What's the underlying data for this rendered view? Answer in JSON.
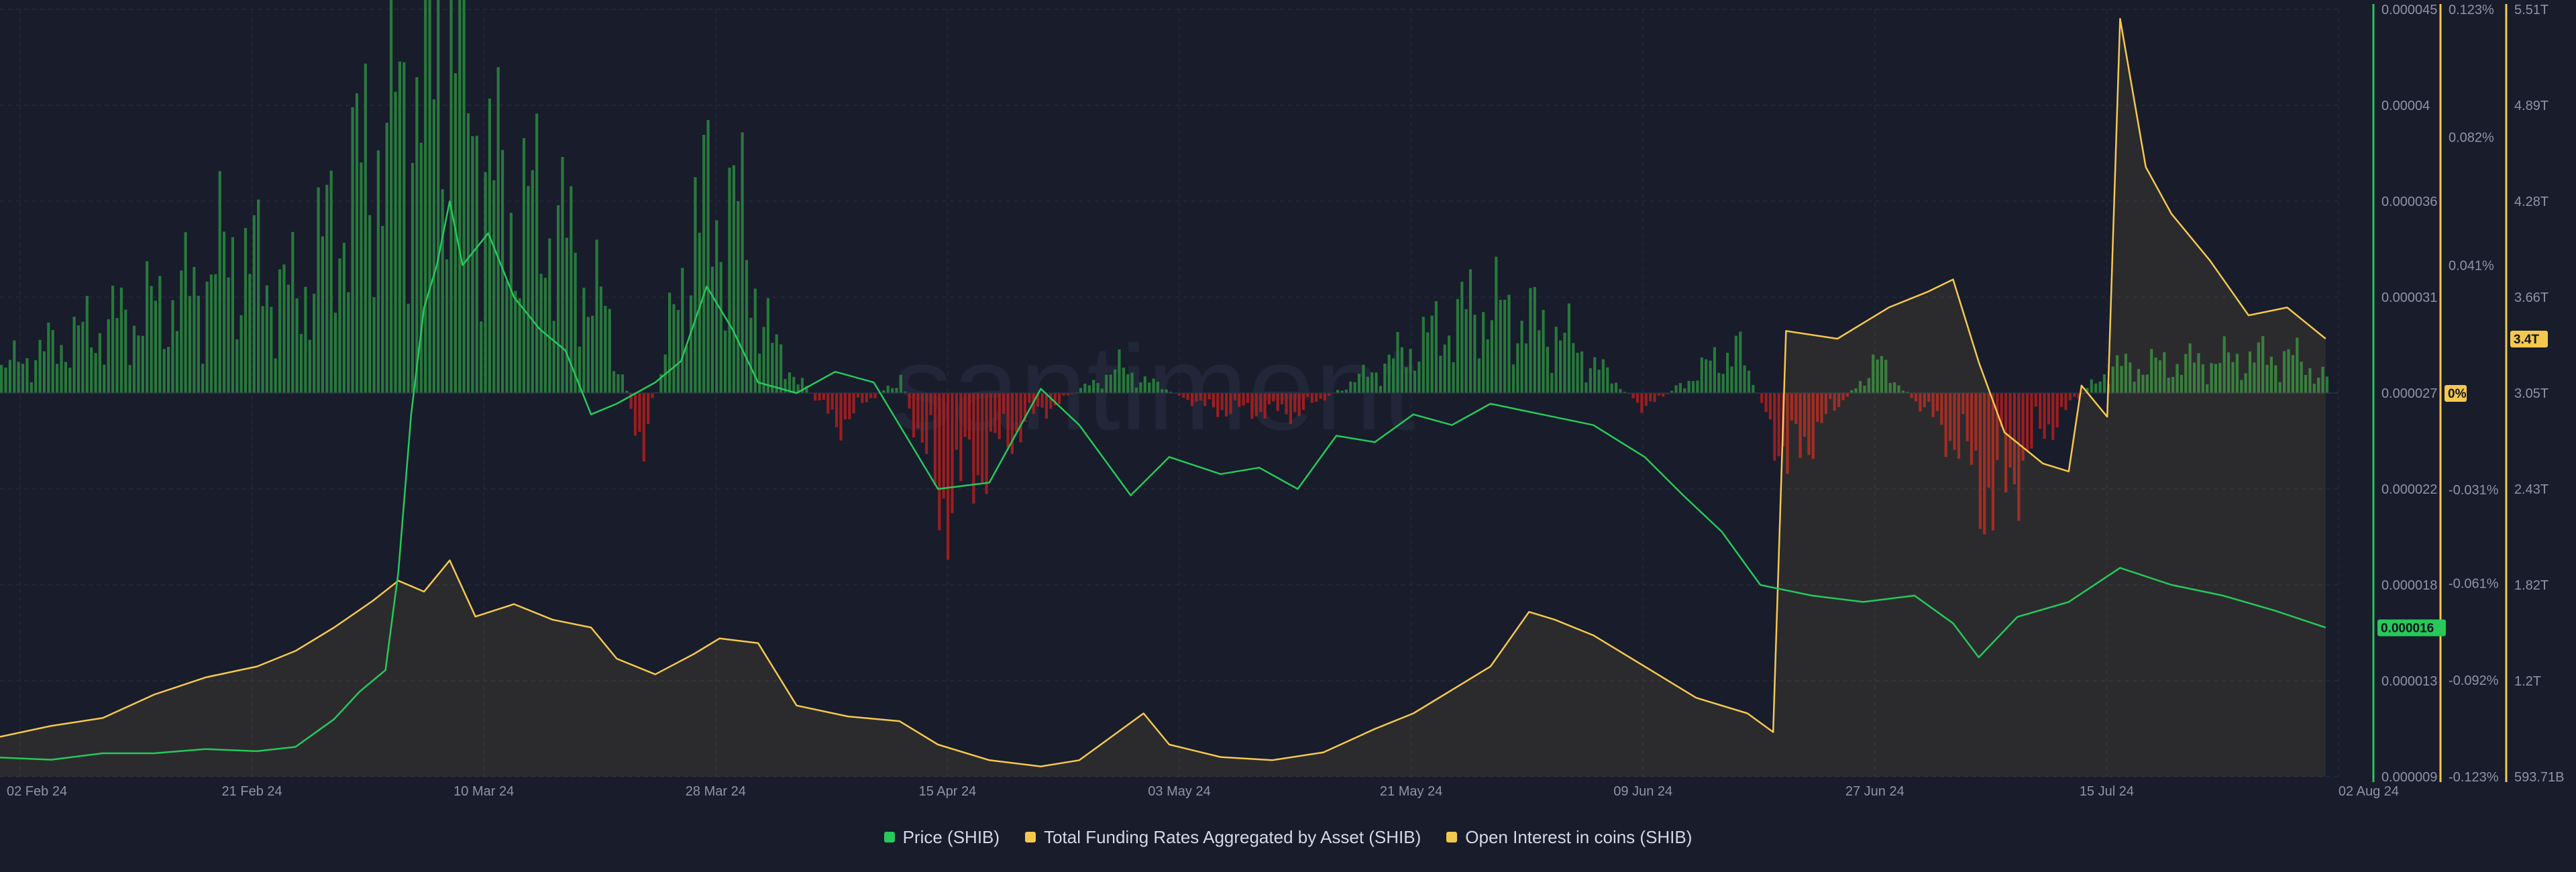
{
  "watermark": "santiment",
  "legend": [
    {
      "label": "Price (SHIB)",
      "color": "#26c95a"
    },
    {
      "label": "Total Funding Rates Aggregated by Asset (SHIB)",
      "color": "#f4c84f"
    },
    {
      "label": "Open Interest in coins (SHIB)",
      "color": "#f4c84f"
    }
  ],
  "colors": {
    "background": "#181c2b",
    "price_line": "#26c95a",
    "funding_positive": "#2a8a3f",
    "funding_negative": "#b31f1f",
    "open_interest": "#f4c84f",
    "tick_text": "#8e94a8"
  },
  "chart_data": {
    "type": "line",
    "x_axis": {
      "start": "2024-02-02",
      "end": "2024-08-02",
      "tick_labels": [
        "02 Feb 24",
        "21 Feb 24",
        "10 Mar 24",
        "28 Mar 24",
        "15 Apr 24",
        "03 May 24",
        "21 May 24",
        "09 Jun 24",
        "27 Jun 24",
        "15 Jul 24",
        "02 Aug 24"
      ]
    },
    "axes": {
      "price": {
        "series": "Price (SHIB)",
        "range": [
          9e-06,
          4.5e-05
        ],
        "tick_labels": [
          "0.000045",
          "0.00004",
          "0.000036",
          "0.000031",
          "0.000027",
          "0.000022",
          "0.000018",
          "0.000013",
          "0.000009"
        ],
        "current_badge": "0.000016",
        "color": "#26c95a"
      },
      "funding": {
        "series": "Total Funding Rates Aggregated by Asset (SHIB)",
        "unit": "%",
        "range": [
          -0.123,
          0.123
        ],
        "tick_labels": [
          "0.123%",
          "0.082%",
          "0.041%",
          "0%",
          "-0.031%",
          "-0.061%",
          "-0.092%",
          "-0.123%"
        ],
        "tick_values": [
          0.123,
          0.082,
          0.041,
          0,
          -0.031,
          -0.061,
          -0.092,
          -0.123
        ],
        "current_badge": "0%",
        "color": "#f4c84f"
      },
      "open_interest": {
        "series": "Open Interest in coins (SHIB)",
        "range_trillions": [
          0.59371,
          5.51
        ],
        "tick_labels": [
          "5.51T",
          "4.89T",
          "4.28T",
          "3.66T",
          "3.05T",
          "2.43T",
          "1.82T",
          "1.2T",
          "593.71B"
        ],
        "current_badge": "3.4T",
        "color": "#f4c84f"
      }
    },
    "series": [
      {
        "name": "Price (SHIB)",
        "axis": "price",
        "points": [
          [
            "2024-02-02",
            9.9e-06
          ],
          [
            "2024-02-06",
            9.8e-06
          ],
          [
            "2024-02-10",
            1.01e-05
          ],
          [
            "2024-02-14",
            1.01e-05
          ],
          [
            "2024-02-18",
            1.03e-05
          ],
          [
            "2024-02-22",
            1.02e-05
          ],
          [
            "2024-02-25",
            1.04e-05
          ],
          [
            "2024-02-28",
            1.17e-05
          ],
          [
            "2024-03-01",
            1.3e-05
          ],
          [
            "2024-03-03",
            1.4e-05
          ],
          [
            "2024-03-04",
            1.86e-05
          ],
          [
            "2024-03-05",
            2.6e-05
          ],
          [
            "2024-03-06",
            3.1e-05
          ],
          [
            "2024-03-07",
            3.3e-05
          ],
          [
            "2024-03-08",
            3.6e-05
          ],
          [
            "2024-03-09",
            3.3e-05
          ],
          [
            "2024-03-11",
            3.45e-05
          ],
          [
            "2024-03-13",
            3.15e-05
          ],
          [
            "2024-03-15",
            3e-05
          ],
          [
            "2024-03-17",
            2.9e-05
          ],
          [
            "2024-03-19",
            2.6e-05
          ],
          [
            "2024-03-21",
            2.65e-05
          ],
          [
            "2024-03-24",
            2.75e-05
          ],
          [
            "2024-03-26",
            2.85e-05
          ],
          [
            "2024-03-28",
            3.2e-05
          ],
          [
            "2024-03-30",
            3e-05
          ],
          [
            "2024-04-01",
            2.75e-05
          ],
          [
            "2024-04-04",
            2.7e-05
          ],
          [
            "2024-04-07",
            2.8e-05
          ],
          [
            "2024-04-10",
            2.75e-05
          ],
          [
            "2024-04-13",
            2.45e-05
          ],
          [
            "2024-04-15",
            2.25e-05
          ],
          [
            "2024-04-19",
            2.28e-05
          ],
          [
            "2024-04-23",
            2.72e-05
          ],
          [
            "2024-04-26",
            2.55e-05
          ],
          [
            "2024-04-30",
            2.22e-05
          ],
          [
            "2024-05-03",
            2.4e-05
          ],
          [
            "2024-05-07",
            2.32e-05
          ],
          [
            "2024-05-10",
            2.35e-05
          ],
          [
            "2024-05-13",
            2.25e-05
          ],
          [
            "2024-05-16",
            2.5e-05
          ],
          [
            "2024-05-19",
            2.47e-05
          ],
          [
            "2024-05-22",
            2.6e-05
          ],
          [
            "2024-05-25",
            2.55e-05
          ],
          [
            "2024-05-28",
            2.65e-05
          ],
          [
            "2024-06-01",
            2.6e-05
          ],
          [
            "2024-06-05",
            2.55e-05
          ],
          [
            "2024-06-09",
            2.4e-05
          ],
          [
            "2024-06-12",
            2.22e-05
          ],
          [
            "2024-06-15",
            2.05e-05
          ],
          [
            "2024-06-18",
            1.8e-05
          ],
          [
            "2024-06-22",
            1.75e-05
          ],
          [
            "2024-06-26",
            1.72e-05
          ],
          [
            "2024-06-30",
            1.75e-05
          ],
          [
            "2024-07-03",
            1.62e-05
          ],
          [
            "2024-07-05",
            1.46e-05
          ],
          [
            "2024-07-08",
            1.65e-05
          ],
          [
            "2024-07-12",
            1.72e-05
          ],
          [
            "2024-07-16",
            1.88e-05
          ],
          [
            "2024-07-20",
            1.8e-05
          ],
          [
            "2024-07-24",
            1.75e-05
          ],
          [
            "2024-07-28",
            1.68e-05
          ],
          [
            "2024-08-01",
            1.6e-05
          ]
        ]
      },
      {
        "name": "Open Interest in coins (SHIB)",
        "axis": "open_interest",
        "unit": "T",
        "points": [
          [
            "2024-02-02",
            0.85
          ],
          [
            "2024-02-06",
            0.92
          ],
          [
            "2024-02-10",
            0.97
          ],
          [
            "2024-02-14",
            1.12
          ],
          [
            "2024-02-18",
            1.23
          ],
          [
            "2024-02-22",
            1.3
          ],
          [
            "2024-02-25",
            1.4
          ],
          [
            "2024-02-28",
            1.55
          ],
          [
            "2024-03-02",
            1.72
          ],
          [
            "2024-03-04",
            1.85
          ],
          [
            "2024-03-06",
            1.78
          ],
          [
            "2024-03-08",
            1.98
          ],
          [
            "2024-03-10",
            1.62
          ],
          [
            "2024-03-13",
            1.7
          ],
          [
            "2024-03-16",
            1.6
          ],
          [
            "2024-03-19",
            1.55
          ],
          [
            "2024-03-21",
            1.35
          ],
          [
            "2024-03-24",
            1.25
          ],
          [
            "2024-03-27",
            1.38
          ],
          [
            "2024-03-29",
            1.48
          ],
          [
            "2024-04-01",
            1.45
          ],
          [
            "2024-04-04",
            1.05
          ],
          [
            "2024-04-08",
            0.98
          ],
          [
            "2024-04-12",
            0.95
          ],
          [
            "2024-04-15",
            0.8
          ],
          [
            "2024-04-19",
            0.7
          ],
          [
            "2024-04-23",
            0.66
          ],
          [
            "2024-04-26",
            0.7
          ],
          [
            "2024-04-29",
            0.88
          ],
          [
            "2024-05-01",
            1.0
          ],
          [
            "2024-05-03",
            0.8
          ],
          [
            "2024-05-07",
            0.72
          ],
          [
            "2024-05-11",
            0.7
          ],
          [
            "2024-05-15",
            0.75
          ],
          [
            "2024-05-19",
            0.9
          ],
          [
            "2024-05-22",
            1.0
          ],
          [
            "2024-05-25",
            1.15
          ],
          [
            "2024-05-28",
            1.3
          ],
          [
            "2024-05-31",
            1.65
          ],
          [
            "2024-06-02",
            1.6
          ],
          [
            "2024-06-05",
            1.5
          ],
          [
            "2024-06-09",
            1.3
          ],
          [
            "2024-06-13",
            1.1
          ],
          [
            "2024-06-17",
            1.0
          ],
          [
            "2024-06-19",
            0.88
          ],
          [
            "2024-06-20",
            3.45
          ],
          [
            "2024-06-24",
            3.4
          ],
          [
            "2024-06-28",
            3.6
          ],
          [
            "2024-07-01",
            3.7
          ],
          [
            "2024-07-03",
            3.78
          ],
          [
            "2024-07-05",
            3.25
          ],
          [
            "2024-07-07",
            2.8
          ],
          [
            "2024-07-10",
            2.6
          ],
          [
            "2024-07-12",
            2.55
          ],
          [
            "2024-07-13",
            3.1
          ],
          [
            "2024-07-15",
            2.9
          ],
          [
            "2024-07-16",
            5.45
          ],
          [
            "2024-07-18",
            4.5
          ],
          [
            "2024-07-20",
            4.2
          ],
          [
            "2024-07-23",
            3.9
          ],
          [
            "2024-07-26",
            3.55
          ],
          [
            "2024-07-29",
            3.6
          ],
          [
            "2024-08-01",
            3.4
          ]
        ]
      },
      {
        "name": "Total Funding Rates Aggregated by Asset (SHIB)",
        "axis": "funding",
        "unit": "%",
        "style": "histogram",
        "points": [
          [
            "2024-02-02",
            0.008
          ],
          [
            "2024-02-09",
            0.02
          ],
          [
            "2024-02-16",
            0.03
          ],
          [
            "2024-02-20",
            0.045
          ],
          [
            "2024-02-25",
            0.03
          ],
          [
            "2024-03-01",
            0.07
          ],
          [
            "2024-03-06",
            0.105
          ],
          [
            "2024-03-08",
            0.115
          ],
          [
            "2024-03-12",
            0.06
          ],
          [
            "2024-03-16",
            0.055
          ],
          [
            "2024-03-20",
            0.025
          ],
          [
            "2024-03-23",
            -0.018
          ],
          [
            "2024-03-27",
            0.055
          ],
          [
            "2024-03-30",
            0.06
          ],
          [
            "2024-04-02",
            0.015
          ],
          [
            "2024-04-07",
            -0.01
          ],
          [
            "2024-04-12",
            0.005
          ],
          [
            "2024-04-15",
            -0.035
          ],
          [
            "2024-04-22",
            -0.008
          ],
          [
            "2024-04-29",
            0.008
          ],
          [
            "2024-05-06",
            -0.005
          ],
          [
            "2024-05-13",
            -0.006
          ],
          [
            "2024-05-20",
            0.01
          ],
          [
            "2024-05-27",
            0.028
          ],
          [
            "2024-06-02",
            0.02
          ],
          [
            "2024-06-09",
            -0.005
          ],
          [
            "2024-06-16",
            0.015
          ],
          [
            "2024-06-20",
            -0.022
          ],
          [
            "2024-06-27",
            0.01
          ],
          [
            "2024-07-03",
            -0.015
          ],
          [
            "2024-07-06",
            -0.035
          ],
          [
            "2024-07-10",
            -0.012
          ],
          [
            "2024-07-15",
            0.008
          ],
          [
            "2024-07-22",
            0.01
          ],
          [
            "2024-07-29",
            0.012
          ],
          [
            "2024-08-01",
            0.005
          ]
        ]
      }
    ]
  }
}
